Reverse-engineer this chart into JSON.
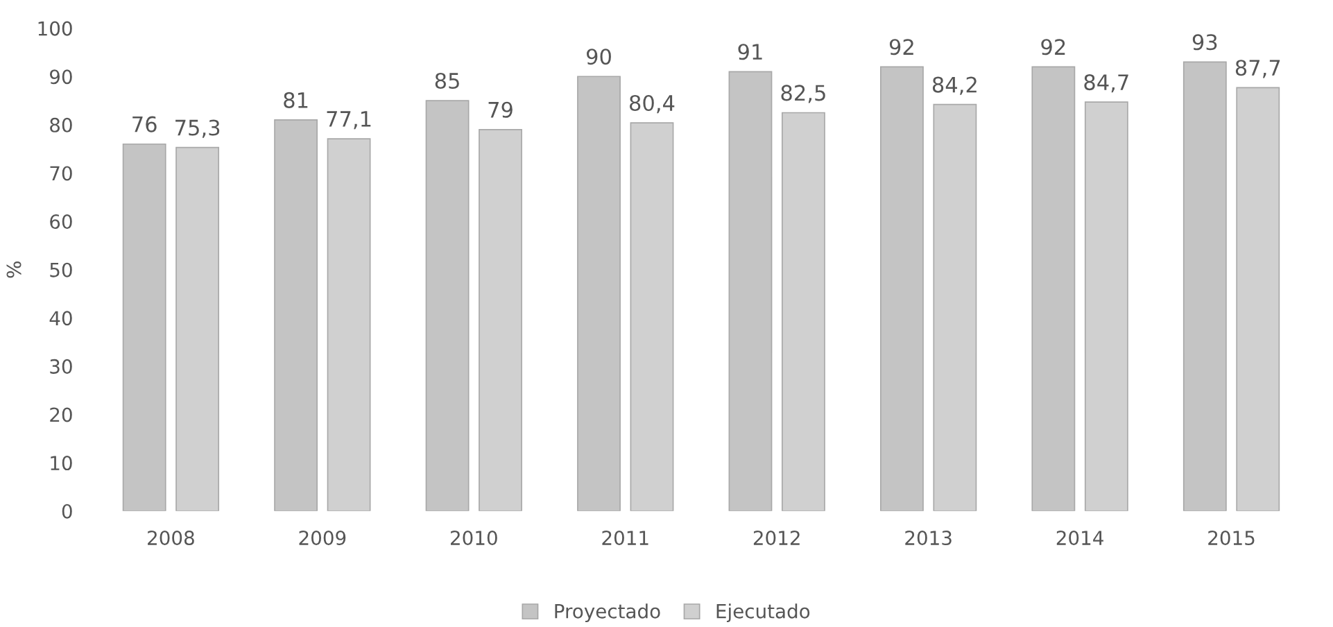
{
  "chart_data": {
    "type": "bar",
    "ylabel": "%",
    "categories": [
      "2008",
      "2009",
      "2010",
      "2011",
      "2012",
      "2013",
      "2014",
      "2015"
    ],
    "series": [
      {
        "name": "Proyectado",
        "color": "#c4c4c4",
        "values": [
          76,
          81,
          85,
          90,
          91,
          92,
          92,
          93
        ],
        "value_labels": [
          "76",
          "81",
          "85",
          "90",
          "91",
          "92",
          "92",
          "93"
        ]
      },
      {
        "name": "Ejecutado",
        "color": "#d0d0d0",
        "values": [
          75.3,
          77.1,
          79,
          80.4,
          82.5,
          84.2,
          84.7,
          87.7
        ],
        "value_labels": [
          "75,3",
          "77,1",
          "79",
          "80,4",
          "82,5",
          "84,2",
          "84,7",
          "87,7"
        ]
      }
    ],
    "ylim": [
      0,
      100
    ],
    "yticks": [
      0,
      10,
      20,
      30,
      40,
      50,
      60,
      70,
      80,
      90,
      100
    ],
    "grid": false,
    "legend": "bottom"
  }
}
